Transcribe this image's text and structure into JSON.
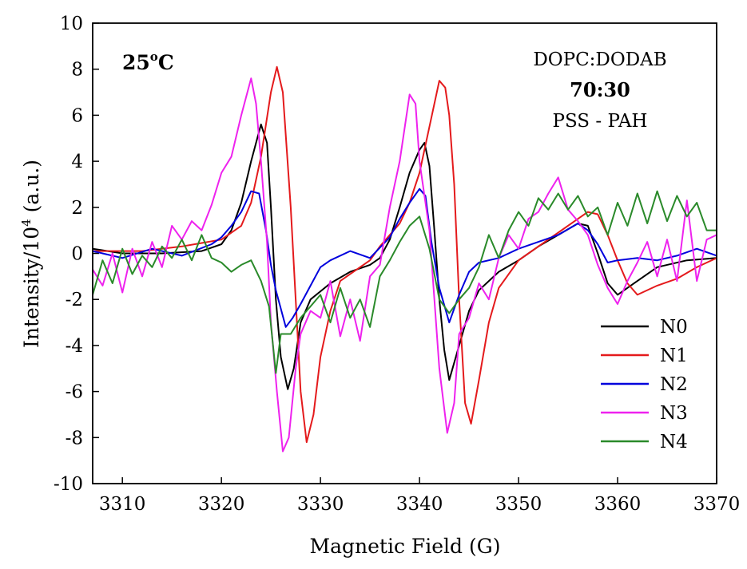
{
  "chart_data": {
    "type": "line",
    "xlabel": "Magnetic Field (G)",
    "ylabel_main": "Intensity/10",
    "ylabel_sup": "4",
    "ylabel_tail": " (a.u.)",
    "xlim": [
      3307,
      3370
    ],
    "ylim": [
      -10,
      10
    ],
    "xticks": [
      3310,
      3320,
      3330,
      3340,
      3350,
      3360,
      3370
    ],
    "yticks": [
      -10,
      -8,
      -6,
      -4,
      -2,
      0,
      2,
      4,
      6,
      8,
      10
    ],
    "grid": false,
    "legend_position": "bottom-right",
    "annotations": {
      "temperature_main": "25",
      "temperature_sup": "o",
      "temperature_tail": "C",
      "lipid": "DOPC:DODAB",
      "ratio": "70:30",
      "polymer": "PSS - PAH"
    },
    "series": [
      {
        "name": "N0",
        "color": "#000000",
        "points": [
          [
            3307,
            0.2
          ],
          [
            3310,
            0.0
          ],
          [
            3314,
            0.0
          ],
          [
            3318,
            0.1
          ],
          [
            3320,
            0.4
          ],
          [
            3321,
            1.0
          ],
          [
            3322,
            2.2
          ],
          [
            3323,
            4.0
          ],
          [
            3324,
            5.6
          ],
          [
            3324.6,
            4.8
          ],
          [
            3325,
            2.0
          ],
          [
            3325.5,
            -2.0
          ],
          [
            3326,
            -4.5
          ],
          [
            3326.7,
            -5.9
          ],
          [
            3327.3,
            -5.0
          ],
          [
            3328,
            -3.0
          ],
          [
            3329,
            -2.0
          ],
          [
            3331,
            -1.3
          ],
          [
            3333,
            -0.8
          ],
          [
            3335,
            -0.5
          ],
          [
            3336,
            -0.2
          ],
          [
            3337,
            0.6
          ],
          [
            3338,
            2.0
          ],
          [
            3339,
            3.5
          ],
          [
            3340,
            4.5
          ],
          [
            3340.5,
            4.8
          ],
          [
            3341,
            3.8
          ],
          [
            3341.5,
            1.0
          ],
          [
            3342,
            -2.0
          ],
          [
            3342.5,
            -4.2
          ],
          [
            3343,
            -5.5
          ],
          [
            3344,
            -4.0
          ],
          [
            3345,
            -2.5
          ],
          [
            3346,
            -1.6
          ],
          [
            3348,
            -0.8
          ],
          [
            3350,
            -0.3
          ],
          [
            3352,
            0.3
          ],
          [
            3354,
            0.8
          ],
          [
            3356,
            1.3
          ],
          [
            3357,
            1.2
          ],
          [
            3358,
            0.0
          ],
          [
            3359,
            -1.3
          ],
          [
            3360,
            -1.8
          ],
          [
            3362,
            -1.2
          ],
          [
            3364,
            -0.6
          ],
          [
            3367,
            -0.3
          ],
          [
            3370,
            -0.2
          ]
        ]
      },
      {
        "name": "N1",
        "color": "#e41a1c",
        "points": [
          [
            3307,
            0.1
          ],
          [
            3312,
            0.1
          ],
          [
            3316,
            0.3
          ],
          [
            3320,
            0.6
          ],
          [
            3322,
            1.2
          ],
          [
            3323,
            2.2
          ],
          [
            3324,
            4.2
          ],
          [
            3325,
            7.0
          ],
          [
            3325.6,
            8.1
          ],
          [
            3326.2,
            7.0
          ],
          [
            3327,
            2.0
          ],
          [
            3327.5,
            -2.0
          ],
          [
            3328,
            -6.0
          ],
          [
            3328.6,
            -8.2
          ],
          [
            3329.3,
            -7.0
          ],
          [
            3330,
            -4.5
          ],
          [
            3331,
            -2.5
          ],
          [
            3332,
            -1.2
          ],
          [
            3334,
            -0.6
          ],
          [
            3335,
            -0.3
          ],
          [
            3336,
            0.3
          ],
          [
            3337,
            0.8
          ],
          [
            3338,
            1.3
          ],
          [
            3339,
            2.2
          ],
          [
            3340,
            3.5
          ],
          [
            3341,
            5.5
          ],
          [
            3342,
            7.5
          ],
          [
            3342.6,
            7.2
          ],
          [
            3343,
            6.0
          ],
          [
            3343.5,
            3.0
          ],
          [
            3344,
            -2.0
          ],
          [
            3344.6,
            -6.5
          ],
          [
            3345.2,
            -7.4
          ],
          [
            3346,
            -5.5
          ],
          [
            3347,
            -3.0
          ],
          [
            3348,
            -1.5
          ],
          [
            3350,
            -0.3
          ],
          [
            3352,
            0.3
          ],
          [
            3354,
            0.9
          ],
          [
            3356,
            1.5
          ],
          [
            3357,
            1.8
          ],
          [
            3358,
            1.7
          ],
          [
            3359,
            0.8
          ],
          [
            3360,
            -0.3
          ],
          [
            3361,
            -1.3
          ],
          [
            3362,
            -1.8
          ],
          [
            3364,
            -1.4
          ],
          [
            3366,
            -1.1
          ],
          [
            3368,
            -0.6
          ],
          [
            3370,
            -0.2
          ]
        ]
      },
      {
        "name": "N2",
        "color": "#0000dd",
        "points": [
          [
            3307,
            0.1
          ],
          [
            3310,
            -0.2
          ],
          [
            3313,
            0.2
          ],
          [
            3316,
            -0.1
          ],
          [
            3319,
            0.4
          ],
          [
            3320,
            0.7
          ],
          [
            3321,
            1.2
          ],
          [
            3322,
            1.8
          ],
          [
            3323,
            2.7
          ],
          [
            3323.8,
            2.6
          ],
          [
            3324.5,
            1.0
          ],
          [
            3325,
            -0.5
          ],
          [
            3325.5,
            -1.6
          ],
          [
            3326.5,
            -3.2
          ],
          [
            3327.2,
            -2.8
          ],
          [
            3328,
            -2.2
          ],
          [
            3329,
            -1.4
          ],
          [
            3330,
            -0.6
          ],
          [
            3331,
            -0.3
          ],
          [
            3333,
            0.1
          ],
          [
            3335,
            -0.2
          ],
          [
            3337,
            0.7
          ],
          [
            3338,
            1.5
          ],
          [
            3339,
            2.2
          ],
          [
            3340,
            2.8
          ],
          [
            3340.6,
            2.5
          ],
          [
            3341.2,
            0.5
          ],
          [
            3342,
            -1.5
          ],
          [
            3343,
            -3.0
          ],
          [
            3344,
            -1.8
          ],
          [
            3345,
            -0.8
          ],
          [
            3346,
            -0.4
          ],
          [
            3348,
            -0.2
          ],
          [
            3350,
            0.2
          ],
          [
            3352,
            0.5
          ],
          [
            3354,
            0.8
          ],
          [
            3356,
            1.3
          ],
          [
            3357,
            1.0
          ],
          [
            3358,
            0.4
          ],
          [
            3359,
            -0.4
          ],
          [
            3360,
            -0.3
          ],
          [
            3362,
            -0.2
          ],
          [
            3364,
            -0.3
          ],
          [
            3366,
            -0.1
          ],
          [
            3368,
            0.2
          ],
          [
            3370,
            -0.1
          ]
        ]
      },
      {
        "name": "N3",
        "color": "#ee22ee",
        "points": [
          [
            3307,
            -0.7
          ],
          [
            3308,
            -1.4
          ],
          [
            3309,
            0.0
          ],
          [
            3310,
            -1.7
          ],
          [
            3311,
            0.2
          ],
          [
            3312,
            -1.0
          ],
          [
            3313,
            0.5
          ],
          [
            3314,
            -0.6
          ],
          [
            3315,
            1.2
          ],
          [
            3316,
            0.6
          ],
          [
            3317,
            1.4
          ],
          [
            3318,
            1.0
          ],
          [
            3319,
            2.1
          ],
          [
            3320,
            3.5
          ],
          [
            3321,
            4.2
          ],
          [
            3322,
            6.0
          ],
          [
            3323,
            7.6
          ],
          [
            3323.5,
            6.5
          ],
          [
            3324,
            4.0
          ],
          [
            3324.6,
            0.5
          ],
          [
            3325,
            -3.0
          ],
          [
            3325.6,
            -6.0
          ],
          [
            3326.2,
            -8.6
          ],
          [
            3326.8,
            -8.0
          ],
          [
            3327.5,
            -5.0
          ],
          [
            3328,
            -3.5
          ],
          [
            3329,
            -2.5
          ],
          [
            3330,
            -2.8
          ],
          [
            3331,
            -1.2
          ],
          [
            3332,
            -3.6
          ],
          [
            3333,
            -2.0
          ],
          [
            3334,
            -3.8
          ],
          [
            3335,
            -1.0
          ],
          [
            3336,
            -0.5
          ],
          [
            3337,
            2.0
          ],
          [
            3338,
            4.0
          ],
          [
            3339,
            6.9
          ],
          [
            3339.6,
            6.5
          ],
          [
            3340,
            4.0
          ],
          [
            3341,
            1.0
          ],
          [
            3341.5,
            -2.0
          ],
          [
            3342,
            -5.0
          ],
          [
            3342.8,
            -7.8
          ],
          [
            3343.5,
            -6.5
          ],
          [
            3344,
            -3.5
          ],
          [
            3345,
            -2.8
          ],
          [
            3346,
            -1.3
          ],
          [
            3347,
            -2.0
          ],
          [
            3348,
            -0.2
          ],
          [
            3349,
            0.8
          ],
          [
            3350,
            0.2
          ],
          [
            3351,
            1.5
          ],
          [
            3352,
            1.8
          ],
          [
            3353,
            2.6
          ],
          [
            3354,
            3.3
          ],
          [
            3355,
            1.9
          ],
          [
            3356,
            1.4
          ],
          [
            3357,
            0.8
          ],
          [
            3358,
            -0.5
          ],
          [
            3359,
            -1.5
          ],
          [
            3360,
            -2.2
          ],
          [
            3361,
            -1.2
          ],
          [
            3362,
            -0.4
          ],
          [
            3363,
            0.5
          ],
          [
            3364,
            -1.0
          ],
          [
            3365,
            0.6
          ],
          [
            3366,
            -1.2
          ],
          [
            3367,
            2.3
          ],
          [
            3368,
            -1.2
          ],
          [
            3369,
            0.6
          ],
          [
            3370,
            0.8
          ]
        ]
      },
      {
        "name": "N4",
        "color": "#2a8a2a",
        "points": [
          [
            3307,
            -1.8
          ],
          [
            3308,
            -0.3
          ],
          [
            3309,
            -1.3
          ],
          [
            3310,
            0.2
          ],
          [
            3311,
            -0.9
          ],
          [
            3312,
            -0.1
          ],
          [
            3313,
            -0.6
          ],
          [
            3314,
            0.3
          ],
          [
            3315,
            -0.2
          ],
          [
            3316,
            0.6
          ],
          [
            3317,
            -0.3
          ],
          [
            3318,
            0.8
          ],
          [
            3319,
            -0.2
          ],
          [
            3320,
            -0.4
          ],
          [
            3321,
            -0.8
          ],
          [
            3322,
            -0.5
          ],
          [
            3323,
            -0.3
          ],
          [
            3324,
            -1.2
          ],
          [
            3324.8,
            -2.3
          ],
          [
            3325.5,
            -5.2
          ],
          [
            3326,
            -3.5
          ],
          [
            3327,
            -3.5
          ],
          [
            3328,
            -2.8
          ],
          [
            3329,
            -2.3
          ],
          [
            3330,
            -1.8
          ],
          [
            3331,
            -3.0
          ],
          [
            3332,
            -1.5
          ],
          [
            3333,
            -2.8
          ],
          [
            3334,
            -2.0
          ],
          [
            3335,
            -3.2
          ],
          [
            3336,
            -1.0
          ],
          [
            3337,
            -0.3
          ],
          [
            3338,
            0.5
          ],
          [
            3339,
            1.2
          ],
          [
            3340,
            1.6
          ],
          [
            3341,
            0.2
          ],
          [
            3342,
            -2.0
          ],
          [
            3343,
            -2.6
          ],
          [
            3344,
            -2.0
          ],
          [
            3345,
            -1.5
          ],
          [
            3346,
            -0.6
          ],
          [
            3347,
            0.8
          ],
          [
            3348,
            -0.2
          ],
          [
            3349,
            1.0
          ],
          [
            3350,
            1.8
          ],
          [
            3351,
            1.2
          ],
          [
            3352,
            2.4
          ],
          [
            3353,
            1.9
          ],
          [
            3354,
            2.6
          ],
          [
            3355,
            1.9
          ],
          [
            3356,
            2.5
          ],
          [
            3357,
            1.6
          ],
          [
            3358,
            2.0
          ],
          [
            3359,
            0.8
          ],
          [
            3360,
            2.2
          ],
          [
            3361,
            1.2
          ],
          [
            3362,
            2.6
          ],
          [
            3363,
            1.3
          ],
          [
            3364,
            2.7
          ],
          [
            3365,
            1.4
          ],
          [
            3366,
            2.5
          ],
          [
            3367,
            1.6
          ],
          [
            3368,
            2.2
          ],
          [
            3369,
            1.0
          ],
          [
            3370,
            1.0
          ]
        ]
      }
    ]
  }
}
